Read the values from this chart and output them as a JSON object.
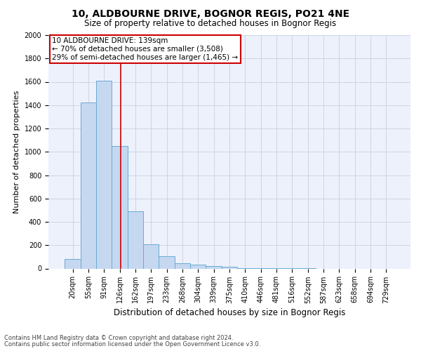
{
  "title": "10, ALDBOURNE DRIVE, BOGNOR REGIS, PO21 4NE",
  "subtitle": "Size of property relative to detached houses in Bognor Regis",
  "xlabel": "Distribution of detached houses by size in Bognor Regis",
  "ylabel": "Number of detached properties",
  "footnote1": "Contains HM Land Registry data © Crown copyright and database right 2024.",
  "footnote2": "Contains public sector information licensed under the Open Government Licence v3.0.",
  "bin_labels": [
    "20sqm",
    "55sqm",
    "91sqm",
    "126sqm",
    "162sqm",
    "197sqm",
    "233sqm",
    "268sqm",
    "304sqm",
    "339sqm",
    "375sqm",
    "410sqm",
    "446sqm",
    "481sqm",
    "516sqm",
    "552sqm",
    "587sqm",
    "623sqm",
    "658sqm",
    "694sqm",
    "729sqm"
  ],
  "bar_values": [
    80,
    1420,
    1610,
    1050,
    490,
    205,
    105,
    48,
    35,
    22,
    15,
    5,
    3,
    2,
    1,
    1,
    0,
    0,
    0,
    0,
    0
  ],
  "bar_color": "#c5d8f0",
  "bar_edge_color": "#6aaad4",
  "grid_color": "#c8cfe0",
  "background_color": "#edf1fb",
  "annotation_line1": "10 ALDBOURNE DRIVE: 139sqm",
  "annotation_line2": "← 70% of detached houses are smaller (3,508)",
  "annotation_line3": "29% of semi-detached houses are larger (1,465) →",
  "annotation_box_color": "#ffffff",
  "annotation_box_edge": "#cc0000",
  "redline_x": 3.07,
  "ylim": [
    0,
    2000
  ],
  "yticks": [
    0,
    200,
    400,
    600,
    800,
    1000,
    1200,
    1400,
    1600,
    1800,
    2000
  ],
  "title_fontsize": 10,
  "subtitle_fontsize": 8.5,
  "xlabel_fontsize": 8.5,
  "ylabel_fontsize": 8,
  "tick_fontsize": 7,
  "annot_fontsize": 7.5
}
